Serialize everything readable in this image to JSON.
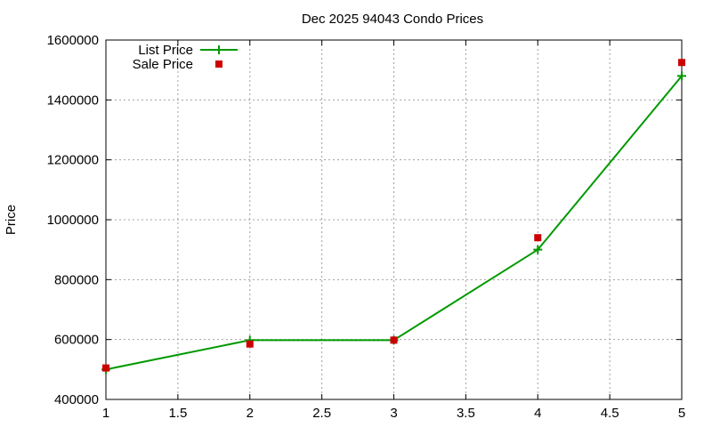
{
  "chart_data": {
    "type": "line",
    "title": "Dec 2025 94043 Condo Prices",
    "xlabel": "",
    "ylabel": "Price",
    "xlim": [
      1,
      5
    ],
    "ylim": [
      400000,
      1600000
    ],
    "x_ticks": [
      1,
      1.5,
      2,
      2.5,
      3,
      3.5,
      4,
      4.5,
      5
    ],
    "y_ticks": [
      400000,
      600000,
      800000,
      1000000,
      1200000,
      1400000,
      1600000
    ],
    "grid": true,
    "legend_position": "top-left",
    "series": [
      {
        "name": "List Price",
        "style": "line+marker",
        "color": "#009900",
        "x": [
          1,
          2,
          3,
          4,
          5
        ],
        "y": [
          500000,
          598000,
          598000,
          900000,
          1480000
        ]
      },
      {
        "name": "Sale Price",
        "style": "marker",
        "color": "#cc0000",
        "x": [
          1,
          2,
          3,
          4,
          5
        ],
        "y": [
          505000,
          585000,
          598000,
          940000,
          1525000
        ]
      }
    ]
  }
}
